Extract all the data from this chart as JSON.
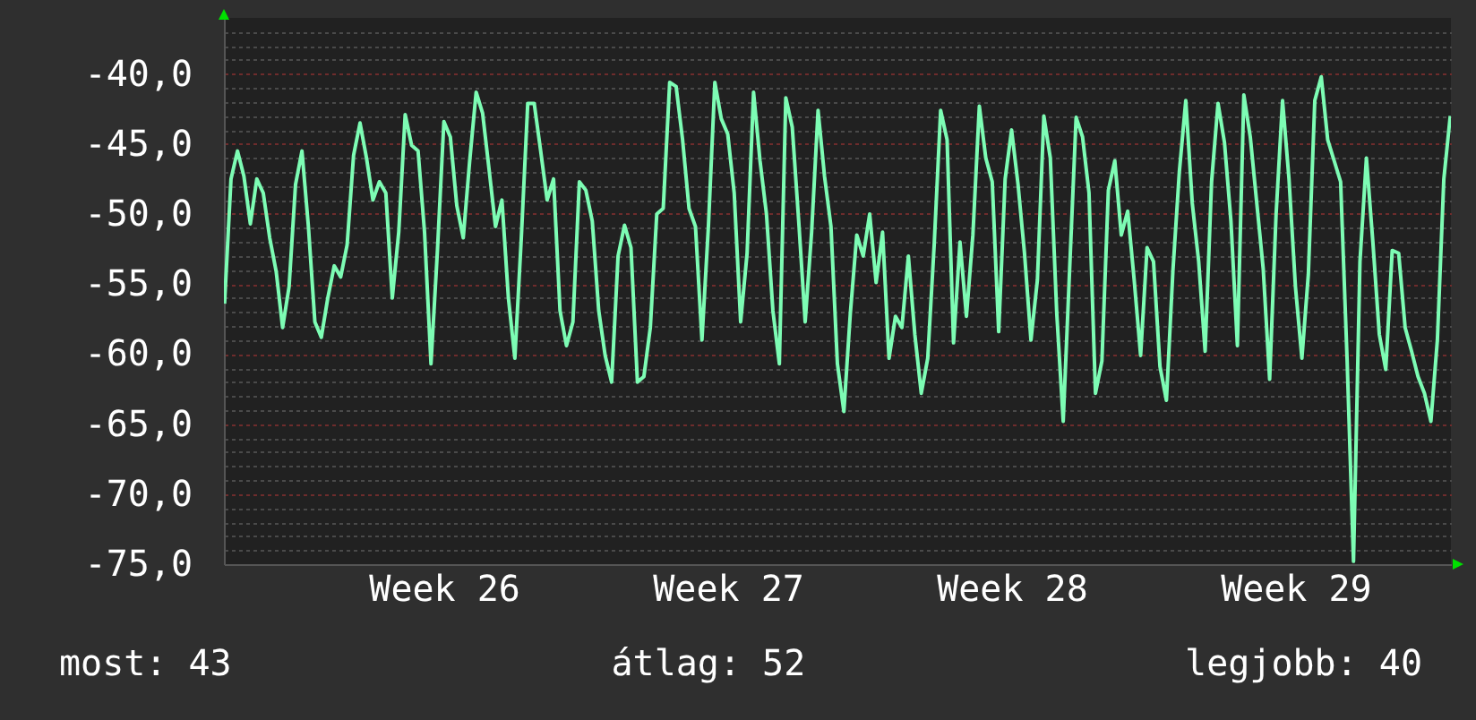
{
  "chart_data": {
    "type": "line",
    "categories": [
      null,
      null,
      null,
      null,
      null,
      null,
      null,
      null,
      null,
      null,
      null,
      null,
      null,
      null,
      null,
      null,
      null,
      null,
      null,
      null,
      null,
      null,
      null,
      null,
      null,
      null,
      null,
      null,
      null,
      null,
      null,
      null,
      null,
      null,
      "Week 26",
      null,
      null,
      null,
      null,
      null,
      null,
      null,
      null,
      null,
      null,
      null,
      null,
      null,
      null,
      null,
      null,
      null,
      null,
      null,
      null,
      null,
      null,
      null,
      null,
      null,
      null,
      null,
      null,
      null,
      null,
      null,
      null,
      null,
      null,
      null,
      null,
      null,
      null,
      null,
      null,
      null,
      null,
      null,
      "Week 27",
      null,
      null,
      null,
      null,
      null,
      null,
      null,
      null,
      null,
      null,
      null,
      null,
      null,
      null,
      null,
      null,
      null,
      null,
      null,
      null,
      null,
      null,
      null,
      null,
      null,
      null,
      null,
      null,
      null,
      null,
      null,
      null,
      null,
      null,
      null,
      null,
      null,
      null,
      null,
      null,
      null,
      null,
      null,
      "Week 28",
      null,
      null,
      null,
      null,
      null,
      null,
      null,
      null,
      null,
      null,
      null,
      null,
      null,
      null,
      null,
      null,
      null,
      null,
      null,
      null,
      null,
      null,
      null,
      null,
      null,
      null,
      null,
      null,
      null,
      null,
      null,
      null,
      null,
      null,
      null,
      null,
      null,
      null,
      null,
      null,
      null,
      null,
      null,
      "Week 29",
      null,
      null,
      null,
      null,
      null,
      null,
      null,
      null,
      null,
      null,
      null,
      null,
      null,
      null,
      null,
      null,
      null,
      null,
      null,
      null,
      null,
      null,
      null,
      null
    ],
    "series": [
      {
        "color": "#7dfcb4",
        "values": [
          -56.4,
          -47.5,
          -45.5,
          -47.3,
          -50.7,
          -47.5,
          -48.5,
          -51.7,
          -54.1,
          -58.1,
          -55.2,
          -47.9,
          -45.5,
          -50.9,
          -57.7,
          -58.8,
          -56.0,
          -53.7,
          -54.5,
          -52.2,
          -45.8,
          -43.5,
          -46.0,
          -49.0,
          -47.7,
          -48.5,
          -56.0,
          -51.3,
          -42.9,
          -45.1,
          -45.5,
          -51.3,
          -60.7,
          -52.6,
          -43.4,
          -44.5,
          -49.4,
          -51.7,
          -46.2,
          -41.3,
          -42.8,
          -46.8,
          -50.9,
          -49.0,
          -56.0,
          -60.3,
          -51.7,
          -42.1,
          -42.1,
          -45.5,
          -49.0,
          -47.5,
          -56.9,
          -59.4,
          -57.7,
          -47.7,
          -48.3,
          -50.5,
          -56.9,
          -60.1,
          -62.0,
          -53.0,
          -50.8,
          -52.4,
          -62.0,
          -61.6,
          -58.1,
          -50.0,
          -49.6,
          -40.6,
          -40.9,
          -44.7,
          -49.6,
          -50.9,
          -59.0,
          -50.9,
          -40.6,
          -43.2,
          -44.3,
          -48.5,
          -57.7,
          -52.8,
          -41.3,
          -46.2,
          -50.0,
          -56.9,
          -60.7,
          -41.7,
          -43.8,
          -50.5,
          -57.7,
          -51.3,
          -42.6,
          -47.3,
          -50.9,
          -60.7,
          -64.1,
          -57.1,
          -51.5,
          -53.0,
          -50.0,
          -54.9,
          -51.3,
          -60.3,
          -57.3,
          -58.1,
          -53.0,
          -58.6,
          -62.8,
          -60.3,
          -52.2,
          -42.6,
          -44.7,
          -59.2,
          -52.0,
          -57.3,
          -51.5,
          -42.3,
          -46.0,
          -47.7,
          -58.4,
          -47.5,
          -44.0,
          -47.9,
          -52.8,
          -59.0,
          -54.7,
          -43.0,
          -46.0,
          -57.1,
          -64.8,
          -53.9,
          -43.1,
          -44.5,
          -48.5,
          -62.8,
          -60.5,
          -48.3,
          -46.2,
          -51.5,
          -49.8,
          -54.7,
          -60.1,
          -52.4,
          -53.4,
          -60.9,
          -63.3,
          -54.1,
          -47.0,
          -41.9,
          -49.2,
          -53.4,
          -59.8,
          -47.7,
          -42.1,
          -44.9,
          -50.5,
          -59.4,
          -41.5,
          -44.5,
          -49.2,
          -53.9,
          -61.8,
          -50.0,
          -41.9,
          -47.5,
          -55.2,
          -60.3,
          -54.3,
          -41.9,
          -40.2,
          -44.7,
          -46.2,
          -47.7,
          -60.3,
          -74.8,
          -53.4,
          -46.0,
          -52.0,
          -58.6,
          -61.1,
          -52.6,
          -52.8,
          -58.1,
          -59.8,
          -61.6,
          -62.8,
          -64.8,
          -59.0,
          -47.5,
          -43.0
        ]
      }
    ],
    "ylim": [
      -75,
      -36
    ],
    "yticks": [
      {
        "value": -75,
        "label": "-75,0"
      },
      {
        "value": -74,
        "label": null
      },
      {
        "value": -73,
        "label": null
      },
      {
        "value": -72,
        "label": null
      },
      {
        "value": -71,
        "label": null
      },
      {
        "value": -70,
        "label": "-70,0"
      },
      {
        "value": -69,
        "label": null
      },
      {
        "value": -68,
        "label": null
      },
      {
        "value": -67,
        "label": null
      },
      {
        "value": -66,
        "label": null
      },
      {
        "value": -65,
        "label": "-65,0"
      },
      {
        "value": -64,
        "label": null
      },
      {
        "value": -63,
        "label": null
      },
      {
        "value": -62,
        "label": null
      },
      {
        "value": -61,
        "label": null
      },
      {
        "value": -60,
        "label": "-60,0"
      },
      {
        "value": -59,
        "label": null
      },
      {
        "value": -58,
        "label": null
      },
      {
        "value": -57,
        "label": null
      },
      {
        "value": -56,
        "label": null
      },
      {
        "value": -55,
        "label": "-55,0"
      },
      {
        "value": -54,
        "label": null
      },
      {
        "value": -53,
        "label": null
      },
      {
        "value": -52,
        "label": null
      },
      {
        "value": -51,
        "label": null
      },
      {
        "value": -50,
        "label": "-50,0"
      },
      {
        "value": -49,
        "label": null
      },
      {
        "value": -48,
        "label": null
      },
      {
        "value": -47,
        "label": null
      },
      {
        "value": -46,
        "label": null
      },
      {
        "value": -45,
        "label": "-45,0"
      },
      {
        "value": -44,
        "label": null
      },
      {
        "value": -43,
        "label": null
      },
      {
        "value": -42,
        "label": null
      },
      {
        "value": -41,
        "label": null
      },
      {
        "value": -40,
        "label": "-40,0"
      },
      {
        "value": -39,
        "label": null
      },
      {
        "value": -38,
        "label": null
      },
      {
        "value": -37,
        "label": null
      }
    ],
    "grid": "y",
    "annotations": [
      "most: 43",
      "átlag: 52",
      "legjobb: 40"
    ]
  }
}
